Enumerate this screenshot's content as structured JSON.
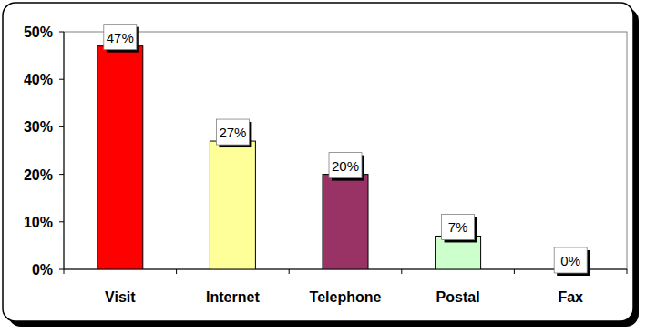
{
  "chart_data": {
    "type": "bar",
    "categories": [
      "Visit",
      "Internet",
      "Telephone",
      "Postal",
      "Fax"
    ],
    "values": [
      47,
      27,
      20,
      7,
      0
    ],
    "value_labels": [
      "47%",
      "27%",
      "20%",
      "7%",
      "0%"
    ],
    "colors": [
      "#ff0000",
      "#ffff99",
      "#993366",
      "#ccffcc",
      "#c0c0c0"
    ],
    "ylim": [
      0,
      50
    ],
    "yticks": [
      {
        "value": 0,
        "label": "0%"
      },
      {
        "value": 10,
        "label": "10%"
      },
      {
        "value": 20,
        "label": "20%"
      },
      {
        "value": 30,
        "label": "30%"
      },
      {
        "value": 40,
        "label": "40%"
      },
      {
        "value": 50,
        "label": "50%"
      }
    ],
    "grid": false,
    "data_labels": true
  }
}
